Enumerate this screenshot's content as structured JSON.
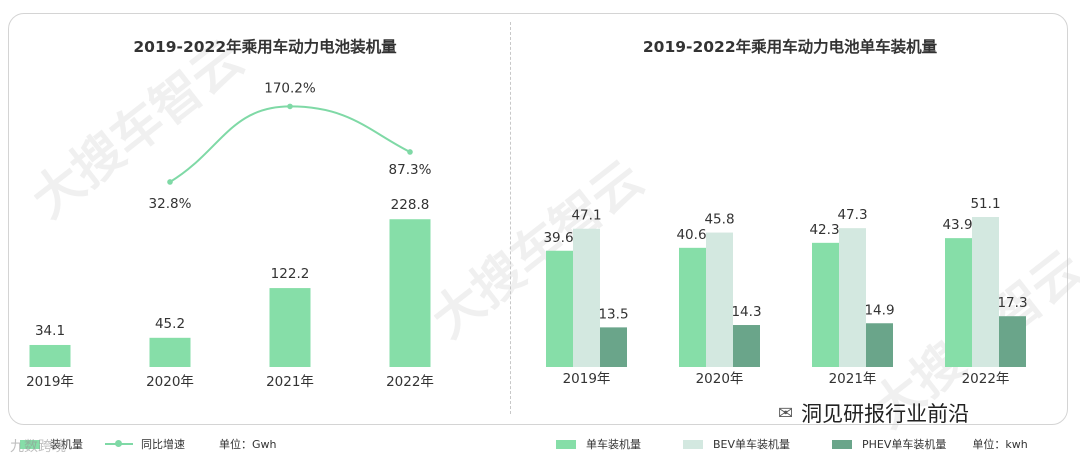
{
  "charts": [
    {
      "title": "2019-2022年乘用车动力电池装机量",
      "unit": "单位：Gwh",
      "chart_data": {
        "type": "bar",
        "categories": [
          "2019年",
          "2020年",
          "2021年",
          "2022年"
        ],
        "series": [
          {
            "name": "装机量",
            "values": [
              34.1,
              45.2,
              122.2,
              228.8
            ],
            "color": "#86dea8"
          }
        ],
        "line_series": {
          "name": "同比增速",
          "categories": [
            "2020年",
            "2021年",
            "2022年"
          ],
          "values": [
            "32.8%",
            "170.2%",
            "87.3%"
          ],
          "numeric": [
            32.8,
            170.2,
            87.3
          ],
          "color": "#7fd9a6"
        },
        "ylim": [
          0,
          240
        ]
      }
    },
    {
      "title": "2019-2022年乘用车动力电池单车装机量",
      "unit": "单位：kwh",
      "chart_data": {
        "type": "bar",
        "categories": [
          "2019年",
          "2020年",
          "2021年",
          "2022年"
        ],
        "series": [
          {
            "name": "单车装机量",
            "values": [
              39.6,
              40.6,
              42.3,
              43.9
            ],
            "color": "#86dea8"
          },
          {
            "name": "BEV单车装机量",
            "values": [
              47.1,
              45.8,
              47.3,
              51.1
            ],
            "color": "#d3e8e0"
          },
          {
            "name": "PHEV单车装机量",
            "values": [
              13.5,
              14.3,
              14.9,
              17.3
            ],
            "color": "#6aa58a"
          }
        ],
        "ylim": [
          0,
          60
        ]
      }
    }
  ],
  "watermark": "大搜车智云",
  "credit": "洞见研报行业前沿",
  "credit_icon": "wechat-icon",
  "credit2": "九数跨境"
}
